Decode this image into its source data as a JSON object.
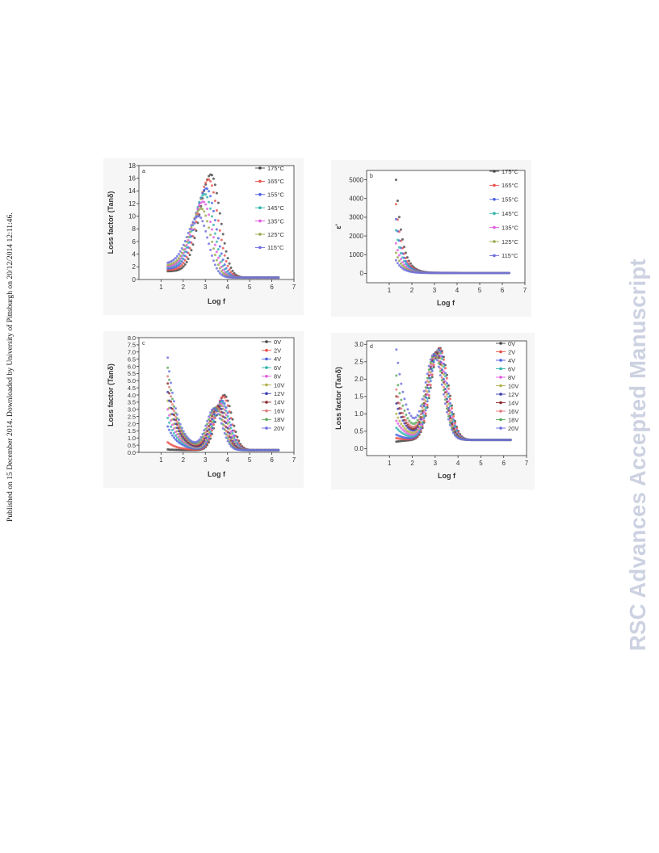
{
  "side_note": "Published on 15 December 2014. Downloaded by University of Pittsburgh on 20/12/2014 12:11:46.",
  "watermark": "RSC Advances Accepted Manuscript",
  "chart_data": [
    {
      "panel": "a",
      "type": "scatter",
      "title": "",
      "xlabel": "Log f",
      "ylabel": "Loss factor (Tanδ)",
      "xlim": [
        0,
        7
      ],
      "ylim": [
        0,
        18
      ],
      "xticks": [
        1,
        2,
        3,
        4,
        5,
        6,
        7
      ],
      "yticks": [
        0,
        2,
        4,
        6,
        8,
        10,
        12,
        14,
        16,
        18
      ],
      "legend": "top-right",
      "legend_entries": [
        "175 °C",
        "165 °C",
        "155 °C",
        "145 °C",
        "135 °C",
        "125 °C",
        "115 °C"
      ],
      "colors": [
        "#444444",
        "#e8504a",
        "#4a5fe0",
        "#2fb3aa",
        "#e05ae0",
        "#9aa84a",
        "#6b6be0"
      ],
      "x_range": [
        1.3,
        6.3
      ],
      "peaks": [
        {
          "x": 3.25,
          "y": 16.6
        },
        {
          "x": 3.15,
          "y": 15.8
        },
        {
          "x": 3.05,
          "y": 14.4
        },
        {
          "x": 2.97,
          "y": 13.5
        },
        {
          "x": 2.9,
          "y": 12.3
        },
        {
          "x": 2.82,
          "y": 11.2
        },
        {
          "x": 2.7,
          "y": 10.0
        }
      ],
      "start_y": [
        1.3,
        1.5,
        1.7,
        1.9,
        2.0,
        2.2,
        2.5
      ],
      "end_y": [
        0.3,
        0.3,
        0.3,
        0.3,
        0.3,
        0.3,
        0.3
      ]
    },
    {
      "panel": "b",
      "type": "scatter",
      "title": "",
      "xlabel": "Log f",
      "ylabel": "ε'",
      "xlim": [
        0,
        7
      ],
      "ylim": [
        -500,
        5500
      ],
      "xticks": [
        1,
        2,
        3,
        4,
        5,
        6,
        7
      ],
      "yticks": [
        0,
        1000,
        2000,
        3000,
        4000,
        5000
      ],
      "legend": "top-right",
      "legend_entries": [
        "175 °C",
        "165 °C",
        "155 °C",
        "145 °C",
        "135 °C",
        "125 °C",
        "115 °C"
      ],
      "colors": [
        "#444444",
        "#e8504a",
        "#4a5fe0",
        "#2fb3aa",
        "#e05ae0",
        "#9aa84a",
        "#6b6be0"
      ],
      "x_range": [
        1.3,
        6.3
      ],
      "start_y": [
        5000,
        3700,
        2900,
        2300,
        1600,
        1100,
        700
      ],
      "end_y": [
        20,
        20,
        20,
        20,
        20,
        20,
        20
      ]
    },
    {
      "panel": "c",
      "type": "scatter",
      "title": "",
      "xlabel": "Log f",
      "ylabel": "Loss factor (Tanδ)",
      "xlim": [
        0,
        7
      ],
      "ylim": [
        0,
        8
      ],
      "xticks": [
        1,
        2,
        3,
        4,
        5,
        6,
        7
      ],
      "yticks": [
        0.0,
        0.5,
        1.0,
        1.5,
        2.0,
        2.5,
        3.0,
        3.5,
        4.0,
        4.5,
        5.0,
        5.5,
        6.0,
        6.5,
        7.0,
        7.5,
        8.0
      ],
      "legend": "top-right",
      "legend_entries": [
        "0V",
        "2V",
        "4V",
        "6V",
        "8V",
        "10V",
        "12V",
        "14V",
        "16V",
        "18V",
        "20V"
      ],
      "colors": [
        "#444444",
        "#e8504a",
        "#4a5fe0",
        "#2fb3aa",
        "#e05ae0",
        "#b0b04a",
        "#3a3ab0",
        "#8a2a2a",
        "#e07a7a",
        "#5aa85a",
        "#6b6be0"
      ],
      "x_range": [
        1.3,
        6.3
      ],
      "peaks": [
        {
          "x": 3.85,
          "y": 4.0
        },
        {
          "x": 3.8,
          "y": 3.9
        },
        {
          "x": 3.75,
          "y": 3.6
        },
        {
          "x": 3.72,
          "y": 3.5
        },
        {
          "x": 3.68,
          "y": 3.4
        },
        {
          "x": 3.65,
          "y": 3.3
        },
        {
          "x": 3.6,
          "y": 3.2
        },
        {
          "x": 3.55,
          "y": 3.15
        },
        {
          "x": 3.5,
          "y": 3.1
        },
        {
          "x": 3.45,
          "y": 3.05
        },
        {
          "x": 3.4,
          "y": 3.0
        }
      ],
      "start_y": [
        0.2,
        0.7,
        1.8,
        2.4,
        3.0,
        3.6,
        4.2,
        4.8,
        5.3,
        5.9,
        6.6
      ],
      "end_y": [
        0.15,
        0.15,
        0.15,
        0.15,
        0.15,
        0.15,
        0.15,
        0.15,
        0.15,
        0.15,
        0.15
      ]
    },
    {
      "panel": "d",
      "type": "scatter",
      "title": "",
      "xlabel": "Log f",
      "ylabel": "Loss factor (Tanδ)",
      "xlim": [
        0,
        7
      ],
      "ylim": [
        -0.2,
        3.1
      ],
      "xticks": [
        1,
        2,
        3,
        4,
        5,
        6,
        7
      ],
      "yticks": [
        0.0,
        0.5,
        1.0,
        1.5,
        2.0,
        2.5,
        3.0
      ],
      "legend": "top-right",
      "legend_entries": [
        "0V",
        "2V",
        "4V",
        "6V",
        "8V",
        "10V",
        "12V",
        "14V",
        "16V",
        "18V",
        "20V"
      ],
      "colors": [
        "#444444",
        "#e8504a",
        "#4a5fe0",
        "#2fb3aa",
        "#e05ae0",
        "#b0b04a",
        "#3a3ab0",
        "#8a2a2a",
        "#e07a7a",
        "#5aa85a",
        "#6b6be0"
      ],
      "x_range": [
        1.3,
        6.3
      ],
      "peaks": [
        {
          "x": 3.2,
          "y": 2.9
        },
        {
          "x": 3.18,
          "y": 2.88
        },
        {
          "x": 3.15,
          "y": 2.85
        },
        {
          "x": 3.13,
          "y": 2.83
        },
        {
          "x": 3.1,
          "y": 2.8
        },
        {
          "x": 3.08,
          "y": 2.78
        },
        {
          "x": 3.05,
          "y": 2.75
        },
        {
          "x": 3.03,
          "y": 2.73
        },
        {
          "x": 3.0,
          "y": 2.7
        },
        {
          "x": 2.98,
          "y": 2.68
        },
        {
          "x": 2.95,
          "y": 2.65
        }
      ],
      "start_y": [
        0.2,
        0.3,
        0.4,
        0.6,
        0.8,
        1.0,
        1.3,
        1.5,
        1.7,
        2.1,
        2.85
      ],
      "end_y": [
        0.25,
        0.25,
        0.25,
        0.25,
        0.25,
        0.25,
        0.25,
        0.25,
        0.25,
        0.25,
        0.25
      ]
    }
  ]
}
